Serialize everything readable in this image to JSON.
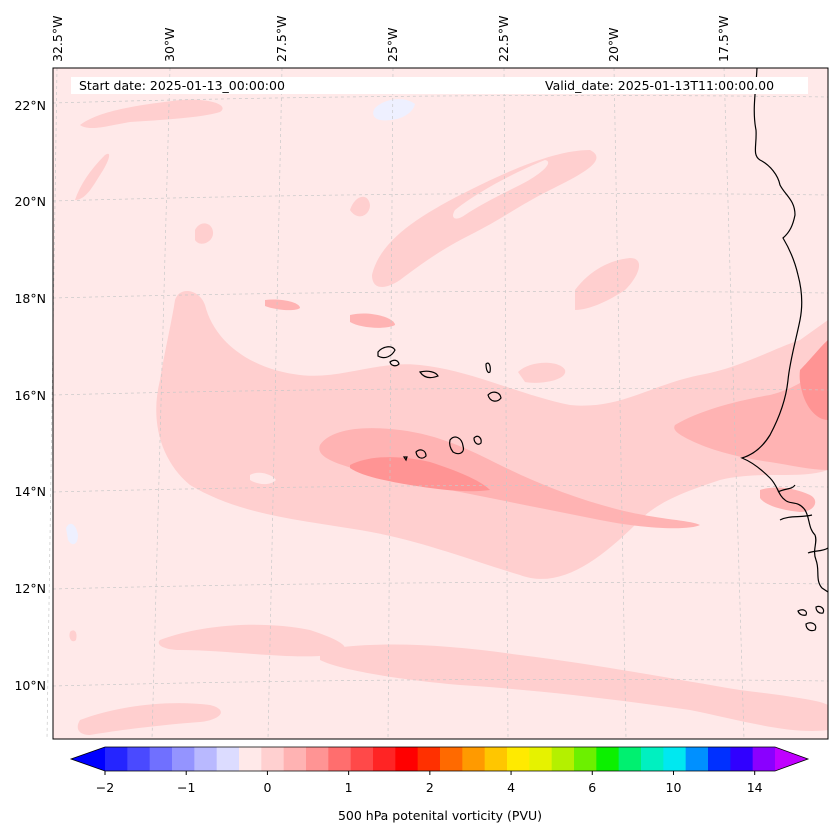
{
  "map": {
    "start_date": "Start date: 2025-01-13_00:00:00",
    "valid_date": "Valid_date: 2025-01-13T11:00:00.00",
    "longitude_labels": [
      "32.5°W",
      "30°W",
      "27.5°W",
      "25°W",
      "22.5°W",
      "20°W",
      "17.5°W"
    ],
    "latitude_labels": [
      "22°N",
      "20°N",
      "18°N",
      "16°N",
      "14°N",
      "12°N",
      "10°N"
    ],
    "field_colors": {
      "background": "#ffe9e9",
      "level1": "#ffcfcf",
      "level2": "#ffb3b3",
      "level3": "#ff9494",
      "negative": "#eef0ff"
    }
  },
  "colorbar": {
    "title": "500 hPa potenital vorticity (PVU)",
    "tick_labels": [
      "−2",
      "−1",
      "0",
      "1",
      "2",
      "4",
      "6",
      "10",
      "14"
    ],
    "colors": [
      "#0000ff",
      "#2525ff",
      "#4a4aff",
      "#7070ff",
      "#9494ff",
      "#b9b9ff",
      "#dcdcff",
      "#ffe9e9",
      "#ffd0d0",
      "#ffb3b3",
      "#ff9494",
      "#ff6e6e",
      "#ff4949",
      "#ff2424",
      "#ff0000",
      "#ff3000",
      "#ff6a00",
      "#ff9a00",
      "#ffc600",
      "#ffea00",
      "#e6f200",
      "#b4f000",
      "#6cf000",
      "#0cf000",
      "#00f070",
      "#00f0c0",
      "#00e8f0",
      "#0090ff",
      "#0030ff",
      "#3000ff",
      "#8a00ff",
      "#c000ff"
    ]
  }
}
